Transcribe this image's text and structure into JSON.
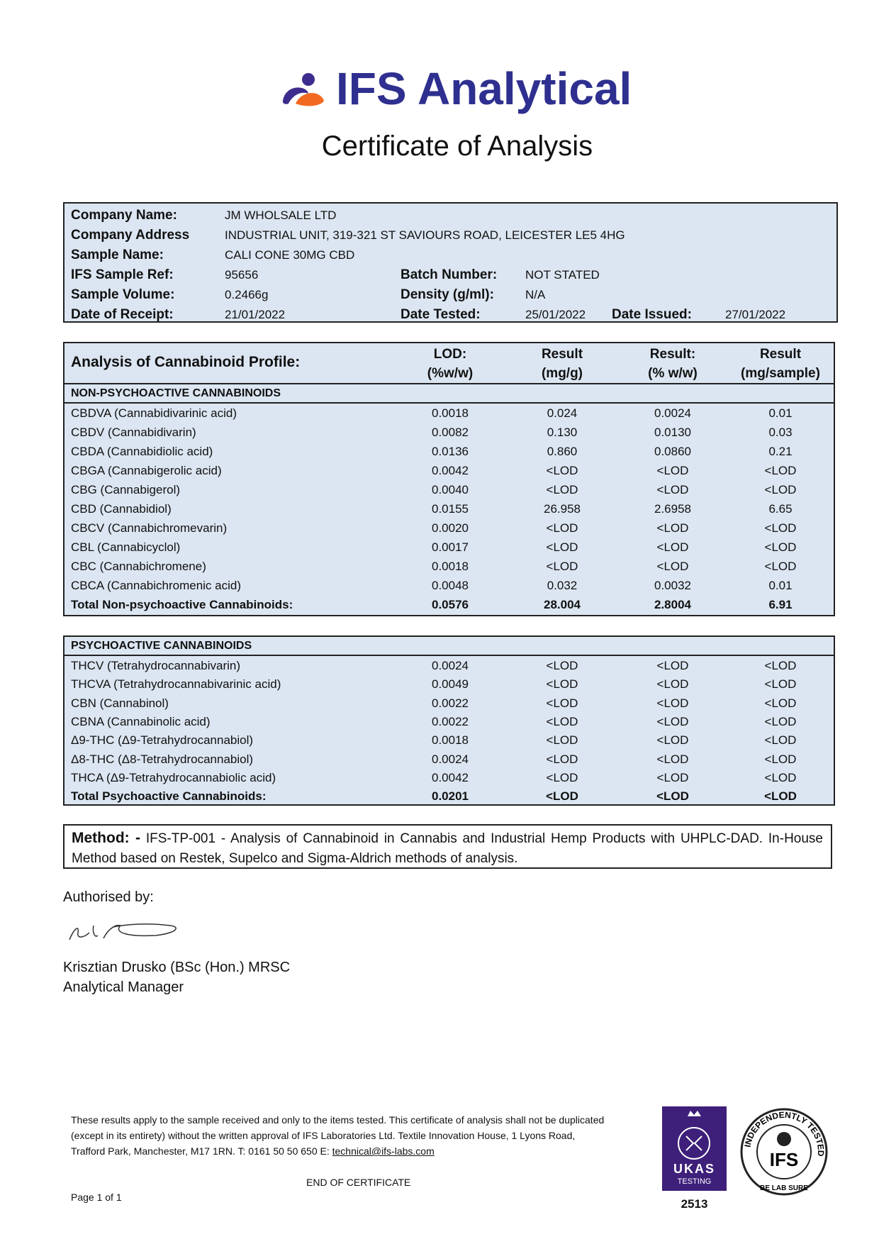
{
  "header": {
    "logo": "IFS Analytical",
    "title": "Certificate of Analysis"
  },
  "sample_info": {
    "rows": [
      [
        [
          "Company Name:",
          "JM WHOLSALE LTD"
        ]
      ],
      [
        [
          "Company Address",
          "INDUSTRIAL UNIT, 319-321 ST SAVIOURS ROAD, LEICESTER LE5 4HG"
        ]
      ],
      [
        [
          "Sample Name:",
          "CALI CONE 30MG CBD"
        ]
      ],
      [
        [
          "IFS Sample Ref:",
          "95656"
        ],
        [
          "Batch Number:",
          "NOT STATED"
        ]
      ],
      [
        [
          "Sample Volume:",
          "0.2466g"
        ],
        [
          "Density (g/ml):",
          "N/A"
        ]
      ],
      [
        [
          "Date of Receipt:",
          "21/01/2022"
        ],
        [
          "Date Tested:",
          "25/01/2022"
        ],
        [
          "Date Issued:",
          "27/01/2022"
        ]
      ]
    ]
  },
  "analysis": {
    "title": "Analysis of Cannabinoid Profile:",
    "columns": [
      [
        "LOD:",
        "(%w/w)"
      ],
      [
        "Result",
        "(mg/g)"
      ],
      [
        "Result:",
        "(% w/w)"
      ],
      [
        "Result",
        "(mg/sample)"
      ]
    ],
    "sections": [
      {
        "heading": "NON-PSYCHOACTIVE CANNABINOIDS",
        "rows": [
          [
            "CBDVA (Cannabidivarinic acid)",
            "0.0018",
            "0.024",
            "0.0024",
            "0.01"
          ],
          [
            "CBDV (Cannabidivarin)",
            "0.0082",
            "0.130",
            "0.0130",
            "0.03"
          ],
          [
            "CBDA (Cannabidiolic acid)",
            "0.0136",
            "0.860",
            "0.0860",
            "0.21"
          ],
          [
            "CBGA (Cannabigerolic acid)",
            "0.0042",
            "<LOD",
            "<LOD",
            "<LOD"
          ],
          [
            "CBG (Cannabigerol)",
            "0.0040",
            "<LOD",
            "<LOD",
            "<LOD"
          ],
          [
            "CBD (Cannabidiol)",
            "0.0155",
            "26.958",
            "2.6958",
            "6.65"
          ],
          [
            "CBCV (Cannabichromevarin)",
            "0.0020",
            "<LOD",
            "<LOD",
            "<LOD"
          ],
          [
            "CBL (Cannabicyclol)",
            "0.0017",
            "<LOD",
            "<LOD",
            "<LOD"
          ],
          [
            "CBC (Cannabichromene)",
            "0.0018",
            "<LOD",
            "<LOD",
            "<LOD"
          ],
          [
            "CBCA (Cannabichromenic acid)",
            "0.0048",
            "0.032",
            "0.0032",
            "0.01"
          ]
        ],
        "total": [
          "Total Non-psychoactive Cannabinoids:",
          "0.0576",
          "28.004",
          "2.8004",
          "6.91"
        ]
      },
      {
        "heading": "PSYCHOACTIVE CANNABINOIDS",
        "rows": [
          [
            "THCV (Tetrahydrocannabivarin)",
            "0.0024",
            "<LOD",
            "<LOD",
            "<LOD"
          ],
          [
            "THCVA (Tetrahydrocannabivarinic acid)",
            "0.0049",
            "<LOD",
            "<LOD",
            "<LOD"
          ],
          [
            "CBN (Cannabinol)",
            "0.0022",
            "<LOD",
            "<LOD",
            "<LOD"
          ],
          [
            "CBNA (Cannabinolic acid)",
            "0.0022",
            "<LOD",
            "<LOD",
            "<LOD"
          ],
          [
            "Δ9-THC (Δ9-Tetrahydrocannabiol)",
            "0.0018",
            "<LOD",
            "<LOD",
            "<LOD"
          ],
          [
            "Δ8-THC (Δ8-Tetrahydrocannabiol)",
            "0.0024",
            "<LOD",
            "<LOD",
            "<LOD"
          ],
          [
            "THCA (Δ9-Tetrahydrocannabiolic acid)",
            "0.0042",
            "<LOD",
            "<LOD",
            "<LOD"
          ]
        ],
        "total": [
          "Total Psychoactive Cannabinoids:",
          "0.0201",
          "<LOD",
          "<LOD",
          "<LOD"
        ]
      }
    ]
  },
  "method": {
    "label": "Method: -",
    "text": "IFS-TP-001 - Analysis of Cannabinoid in Cannabis and Industrial Hemp Products with UHPLC-DAD. In-House Method based on Restek, Supelco and Sigma-Aldrich methods of analysis."
  },
  "authorisation": {
    "label": "Authorised by:",
    "name": "Krisztian Drusko (BSc (Hon.) MRSC",
    "role": "Analytical Manager"
  },
  "footer": {
    "disclaimer": [
      "These results apply to the sample received and only to the items tested. This certificate of analysis shall not be duplicated",
      "(except in its entirety) without the written approval of IFS Laboratories Ltd. Textile Innovation House, 1 Lyons Road,",
      "Trafford Park, Manchester, M17 1RN. T: 0161 50 50 650 E:"
    ],
    "email": "technical@ifs-labs.com",
    "end": "END OF CERTIFICATE",
    "page": "Page 1 of 1",
    "ukas": {
      "name": "UKAS",
      "sub": "TESTING",
      "number": "2513"
    },
    "badge": {
      "ring": "INDEPENDENTLY TESTED",
      "name": "IFS",
      "motto": "BE LAB SURE"
    }
  }
}
